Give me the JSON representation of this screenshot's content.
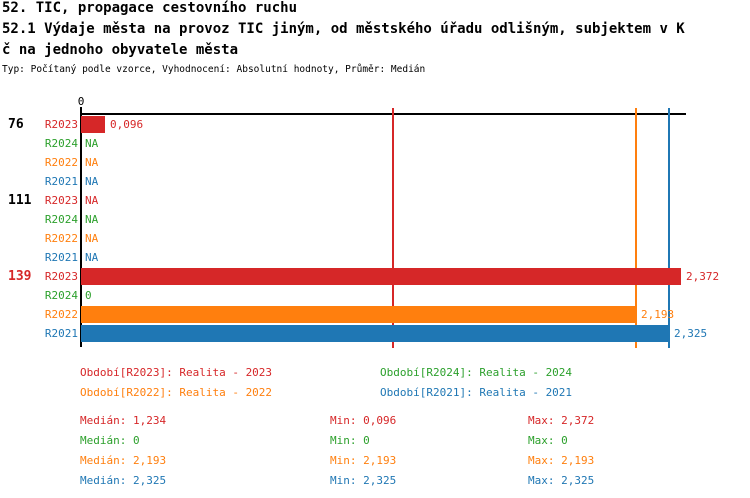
{
  "header": {
    "title_line1": "52. TIC, propagace cestovního ruchu",
    "title_line2": "52.1 Výdaje města na provoz TIC jiným, od městského úřadu odlišným, subjektem v K",
    "title_line3": "č na jednoho obyvatele města",
    "meta_line": "Typ: Počítaný podle vzorce, Vyhodnocení: Absolutní hodnoty, Průměr: Medián"
  },
  "chart_data": {
    "type": "bar",
    "orientation": "horizontal",
    "title": "52.1 Výdaje města na provoz TIC jiným, od městského úřadu odlišným, subjektem v Kč na jednoho obyvatele města",
    "axis": {
      "zero_label": "0",
      "xlim": [
        0,
        2.4
      ],
      "grid": false
    },
    "series_colors": {
      "R2023": "#d62728",
      "R2024": "#2ca02c",
      "R2022": "#ff7f0e",
      "R2021": "#1f77b4"
    },
    "groups": [
      {
        "label": "76",
        "label_color": "#000000",
        "rows": [
          {
            "period": "R2023",
            "value": 0.096,
            "display": "0,096"
          },
          {
            "period": "R2024",
            "value": null,
            "display": "NA"
          },
          {
            "period": "R2022",
            "value": null,
            "display": "NA"
          },
          {
            "period": "R2021",
            "value": null,
            "display": "NA"
          }
        ]
      },
      {
        "label": "111",
        "label_color": "#000000",
        "rows": [
          {
            "period": "R2023",
            "value": null,
            "display": "NA"
          },
          {
            "period": "R2024",
            "value": null,
            "display": "NA"
          },
          {
            "period": "R2022",
            "value": null,
            "display": "NA"
          },
          {
            "period": "R2021",
            "value": null,
            "display": "NA"
          }
        ]
      },
      {
        "label": "139",
        "label_color": "#d62728",
        "rows": [
          {
            "period": "R2023",
            "value": 2.372,
            "display": "2,372"
          },
          {
            "period": "R2024",
            "value": 0,
            "display": "0"
          },
          {
            "period": "R2022",
            "value": 2.193,
            "display": "2,193"
          },
          {
            "period": "R2021",
            "value": 2.325,
            "display": "2,325"
          }
        ]
      }
    ],
    "median_lines": [
      {
        "series": "R2023",
        "value": 1.234,
        "color": "#d62728"
      },
      {
        "series": "R2022",
        "value": 2.193,
        "color": "#ff7f0e"
      },
      {
        "series": "R2021",
        "value": 2.325,
        "color": "#1f77b4"
      }
    ]
  },
  "legend": [
    {
      "label": "Období[R2023]: Realita - 2023",
      "color": "#d62728"
    },
    {
      "label": "Období[R2024]: Realita - 2024",
      "color": "#2ca02c"
    },
    {
      "label": "Období[R2022]: Realita - 2022",
      "color": "#ff7f0e"
    },
    {
      "label": "Období[R2021]: Realita - 2021",
      "color": "#1f77b4"
    }
  ],
  "stats": [
    {
      "median": "Medián: 1,234",
      "min": "Min: 0,096",
      "max": "Max: 2,372",
      "color": "#d62728"
    },
    {
      "median": "Medián: 0",
      "min": "Min: 0",
      "max": "Max: 0",
      "color": "#2ca02c"
    },
    {
      "median": "Medián: 2,193",
      "min": "Min: 2,193",
      "max": "Max: 2,193",
      "color": "#ff7f0e"
    },
    {
      "median": "Medián: 2,325",
      "min": "Min: 2,325",
      "max": "Max: 2,325",
      "color": "#1f77b4"
    }
  ]
}
